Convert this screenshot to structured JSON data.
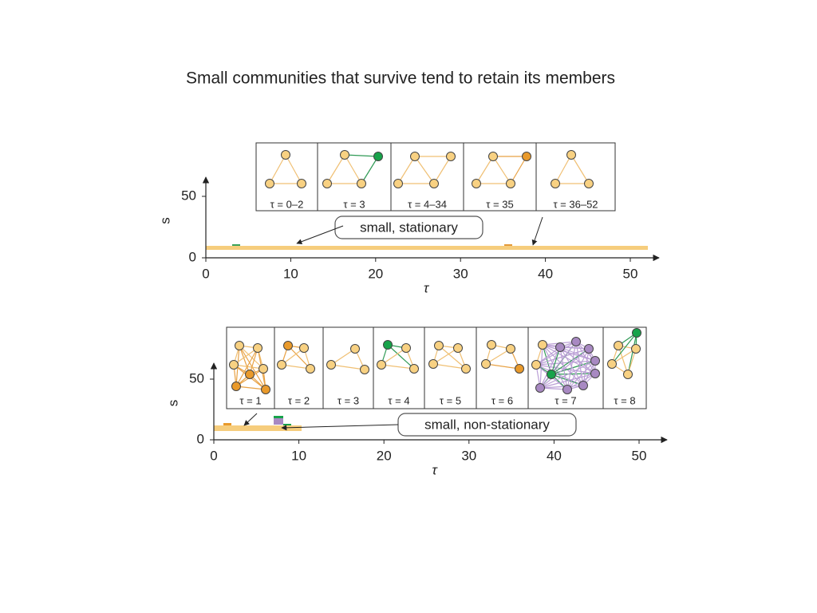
{
  "title": "Small communities that survive tend to retain its members",
  "panels": [
    {
      "ylabel": "s",
      "xlabel": "τ",
      "yticks": [
        0,
        50
      ],
      "xticks": [
        0,
        10,
        20,
        30,
        40,
        50
      ],
      "annotation": "small, stationary",
      "snapshots": [
        "τ = 0–2",
        "τ = 3",
        "τ = 4–34",
        "τ = 35",
        "τ = 36–52"
      ]
    },
    {
      "ylabel": "s",
      "xlabel": "τ",
      "yticks": [
        0,
        50
      ],
      "xticks": [
        0,
        10,
        20,
        30,
        40,
        50
      ],
      "annotation": "small, non-stationary",
      "snapshots": [
        "τ = 1",
        "τ = 2",
        "τ = 3",
        "τ = 4",
        "τ = 5",
        "τ = 6",
        "τ = 7",
        "τ = 8"
      ]
    }
  ]
}
